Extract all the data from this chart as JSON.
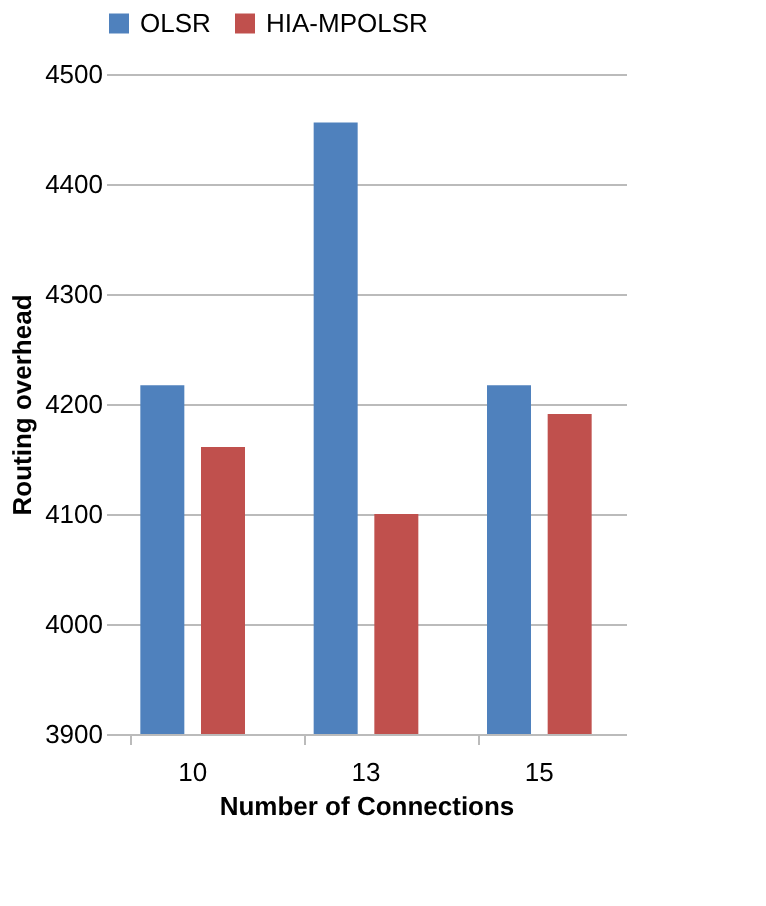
{
  "chart_data": {
    "type": "bar",
    "xlabel": "Number of Connections",
    "ylabel": "Routing overhead",
    "categories": [
      "10",
      "13",
      "15"
    ],
    "series": [
      {
        "name": "OLSR",
        "color": "#4f81bd",
        "values": [
          4217,
          4456,
          4217
        ]
      },
      {
        "name": "HIA-MPOLSR",
        "color": "#c0504d",
        "values": [
          4161,
          4100,
          4191
        ]
      }
    ],
    "ylim": [
      3900,
      4500
    ],
    "yticks": [
      3900,
      4000,
      4100,
      4200,
      4300,
      4400,
      4500
    ],
    "grid": "y",
    "legend": "top"
  }
}
